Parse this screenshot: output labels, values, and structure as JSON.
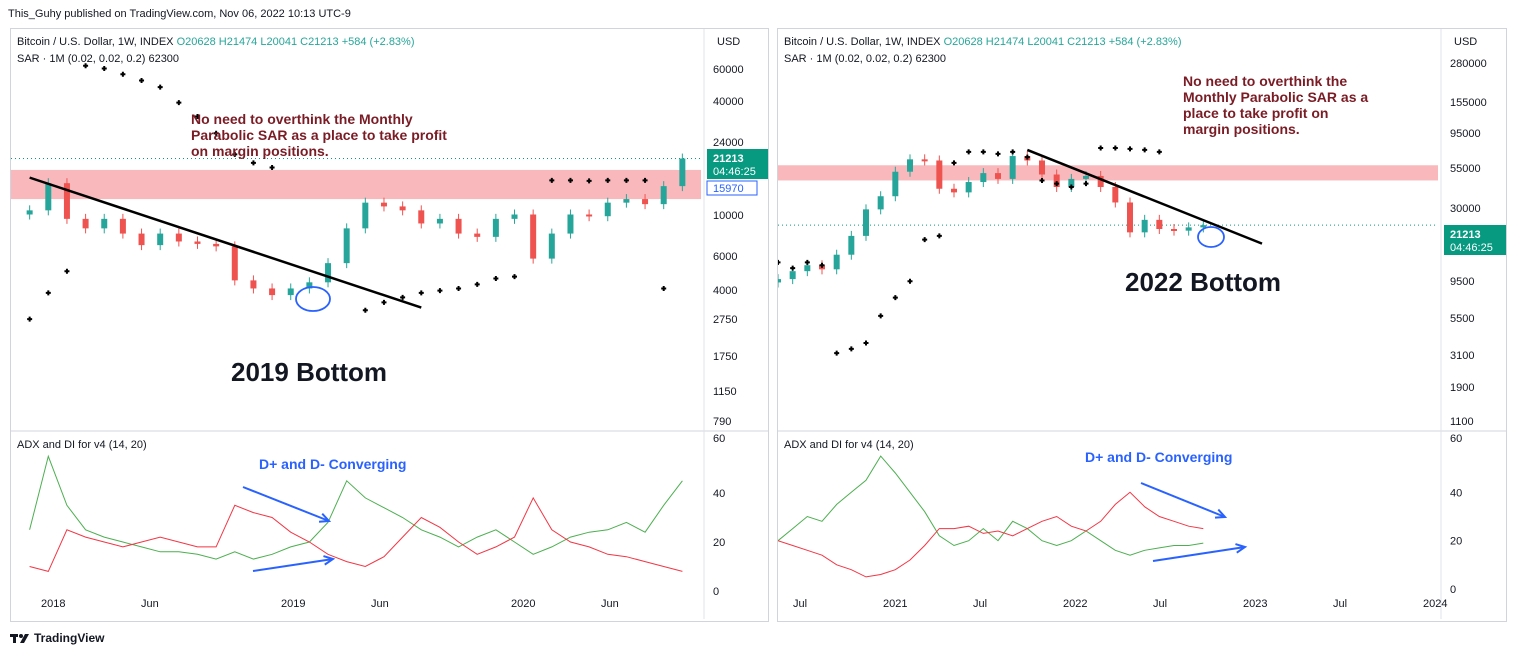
{
  "header": {
    "published": "This_Guhy published on TradingView.com, Nov 06, 2022 10:13 UTC-9"
  },
  "footer": {
    "brand": "TradingView"
  },
  "colors": {
    "up": "#26a69a",
    "down": "#ef5350",
    "resistance": "#f7a1a6",
    "annotation": "#7a1c25",
    "converging": "#2962ff",
    "adx_green": "#4caf50",
    "adx_red": "#f23645",
    "price_tag": "#089981"
  },
  "chart_data": [
    {
      "type": "candlestick",
      "name": "left",
      "legend": {
        "line1_symbol": "Bitcoin / U.S. Dollar, 1W, INDEX",
        "o": "O20628",
        "h": "H21474",
        "l": "L20041",
        "c": "C21213",
        "chg": "+584 (+2.83%)",
        "line2": "SAR · 1M (0.02, 0.02, 0.2)",
        "line2_val": "62300"
      },
      "currency": "USD",
      "y_scale": "log",
      "ylim": [
        700,
        90000
      ],
      "y_ticks": [
        "60000",
        "40000",
        "24000",
        "10000",
        "6000",
        "4000",
        "2750",
        "1750",
        "1150",
        "790"
      ],
      "x_ticks": [
        "2018",
        "Jun",
        "2019",
        "Jun",
        "2020",
        "Jun"
      ],
      "price_tag": {
        "price": "21213",
        "time": "04:46:25",
        "sar_price": "15970"
      },
      "price": [
        [
          "2017-12",
          10000
        ],
        [
          "2018-01",
          14000
        ],
        [
          "2018-02",
          9000
        ],
        [
          "2018-03",
          8000
        ],
        [
          "2018-04",
          9000
        ],
        [
          "2018-05",
          7500
        ],
        [
          "2018-06",
          6500
        ],
        [
          "2018-07",
          7500
        ],
        [
          "2018-08",
          6800
        ],
        [
          "2018-09",
          6600
        ],
        [
          "2018-10",
          6400
        ],
        [
          "2018-11",
          4200
        ],
        [
          "2018-12",
          3800
        ],
        [
          "2019-01",
          3500
        ],
        [
          "2019-02",
          3800
        ],
        [
          "2019-03",
          4100
        ],
        [
          "2019-04",
          5200
        ],
        [
          "2019-05",
          8000
        ],
        [
          "2019-06",
          11000
        ],
        [
          "2019-07",
          10500
        ],
        [
          "2019-08",
          10000
        ],
        [
          "2019-09",
          8500
        ],
        [
          "2019-10",
          9000
        ],
        [
          "2019-11",
          7500
        ],
        [
          "2019-12",
          7200
        ],
        [
          "2020-01",
          9000
        ],
        [
          "2020-02",
          9500
        ],
        [
          "2020-03",
          5500
        ],
        [
          "2020-04",
          7500
        ],
        [
          "2020-05",
          9500
        ],
        [
          "2020-06",
          9300
        ],
        [
          "2020-07",
          11000
        ],
        [
          "2020-08",
          11500
        ],
        [
          "2020-09",
          10800
        ],
        [
          "2020-10",
          13500
        ],
        [
          "2020-11",
          19000
        ]
      ],
      "sar": [
        [
          "2017-12",
          2600
        ],
        [
          "2018-01",
          3600
        ],
        [
          "2018-02",
          4700
        ],
        [
          "2018-03",
          60000
        ],
        [
          "2018-04",
          58000
        ],
        [
          "2018-05",
          54000
        ],
        [
          "2018-06",
          50000
        ],
        [
          "2018-07",
          46000
        ],
        [
          "2018-08",
          38000
        ],
        [
          "2018-09",
          32000
        ],
        [
          "2018-10",
          26000
        ],
        [
          "2018-11",
          20000
        ],
        [
          "2018-12",
          18000
        ],
        [
          "2019-01",
          17000
        ],
        [
          "2019-06",
          2900
        ],
        [
          "2019-07",
          3200
        ],
        [
          "2019-08",
          3400
        ],
        [
          "2019-09",
          3600
        ],
        [
          "2019-10",
          3700
        ],
        [
          "2019-11",
          3800
        ],
        [
          "2019-12",
          4000
        ],
        [
          "2020-01",
          4300
        ],
        [
          "2020-02",
          4400
        ],
        [
          "2020-04",
          14500
        ],
        [
          "2020-05",
          14500
        ],
        [
          "2020-06",
          14400
        ],
        [
          "2020-07",
          14500
        ],
        [
          "2020-08",
          14500
        ],
        [
          "2020-09",
          14500
        ],
        [
          "2020-10",
          3800
        ]
      ],
      "trendline": [
        [
          "2017-12",
          15000
        ],
        [
          "2019-09",
          3000
        ]
      ],
      "resistance_band": [
        11500,
        16500
      ],
      "annotation": [
        "No need to overthink the Monthly",
        "Parabolic SAR as a place to take profit",
        "on margin positions."
      ],
      "bottom_label": "2019 Bottom",
      "indicator": {
        "title": "ADX and DI for v4 (14, 20)",
        "ylim": [
          0,
          60
        ],
        "y_ticks": [
          "60",
          "40",
          "20",
          "0"
        ],
        "converging_label": "D+ and D- Converging",
        "di_plus": [
          [
            "2017-12",
            25
          ],
          [
            "2018-01",
            55
          ],
          [
            "2018-02",
            35
          ],
          [
            "2018-03",
            25
          ],
          [
            "2018-04",
            22
          ],
          [
            "2018-05",
            20
          ],
          [
            "2018-06",
            18
          ],
          [
            "2018-07",
            16
          ],
          [
            "2018-08",
            16
          ],
          [
            "2018-09",
            15
          ],
          [
            "2018-10",
            13
          ],
          [
            "2018-11",
            16
          ],
          [
            "2018-12",
            13
          ],
          [
            "2019-01",
            15
          ],
          [
            "2019-02",
            18
          ],
          [
            "2019-03",
            20
          ],
          [
            "2019-04",
            28
          ],
          [
            "2019-05",
            45
          ],
          [
            "2019-06",
            38
          ],
          [
            "2019-07",
            34
          ],
          [
            "2019-08",
            30
          ],
          [
            "2019-09",
            25
          ],
          [
            "2019-10",
            22
          ],
          [
            "2019-11",
            18
          ],
          [
            "2019-12",
            22
          ],
          [
            "2020-01",
            25
          ],
          [
            "2020-02",
            20
          ],
          [
            "2020-03",
            15
          ],
          [
            "2020-04",
            18
          ],
          [
            "2020-05",
            22
          ],
          [
            "2020-06",
            24
          ],
          [
            "2020-07",
            25
          ],
          [
            "2020-08",
            28
          ],
          [
            "2020-09",
            24
          ],
          [
            "2020-10",
            35
          ],
          [
            "2020-11",
            45
          ]
        ],
        "di_minus": [
          [
            "2017-12",
            10
          ],
          [
            "2018-01",
            8
          ],
          [
            "2018-02",
            25
          ],
          [
            "2018-03",
            22
          ],
          [
            "2018-04",
            20
          ],
          [
            "2018-05",
            18
          ],
          [
            "2018-06",
            20
          ],
          [
            "2018-07",
            22
          ],
          [
            "2018-08",
            20
          ],
          [
            "2018-09",
            18
          ],
          [
            "2018-10",
            18
          ],
          [
            "2018-11",
            35
          ],
          [
            "2018-12",
            32
          ],
          [
            "2019-01",
            30
          ],
          [
            "2019-02",
            24
          ],
          [
            "2019-03",
            20
          ],
          [
            "2019-04",
            15
          ],
          [
            "2019-05",
            12
          ],
          [
            "2019-06",
            10
          ],
          [
            "2019-07",
            14
          ],
          [
            "2019-08",
            22
          ],
          [
            "2019-09",
            30
          ],
          [
            "2019-10",
            26
          ],
          [
            "2019-11",
            20
          ],
          [
            "2019-12",
            15
          ],
          [
            "2020-01",
            18
          ],
          [
            "2020-02",
            22
          ],
          [
            "2020-03",
            38
          ],
          [
            "2020-04",
            25
          ],
          [
            "2020-05",
            20
          ],
          [
            "2020-06",
            18
          ],
          [
            "2020-07",
            15
          ],
          [
            "2020-08",
            14
          ],
          [
            "2020-09",
            12
          ],
          [
            "2020-10",
            10
          ],
          [
            "2020-11",
            8
          ]
        ]
      }
    },
    {
      "type": "candlestick",
      "name": "right",
      "legend": {
        "line1_symbol": "Bitcoin / U.S. Dollar, 1W, INDEX",
        "o": "O20628",
        "h": "H21474",
        "l": "L20041",
        "c": "C21213",
        "chg": "+584 (+2.83%)",
        "line2": "SAR · 1M (0.02, 0.02, 0.2)",
        "line2_val": "62300"
      },
      "currency": "USD",
      "y_scale": "log",
      "ylim": [
        1000,
        400000
      ],
      "y_ticks": [
        "280000",
        "155000",
        "95000",
        "55000",
        "30000",
        "9500",
        "5500",
        "3100",
        "1900",
        "1100"
      ],
      "x_ticks": [
        "Jul",
        "2021",
        "Jul",
        "2022",
        "Jul",
        "2023",
        "Jul",
        "2024"
      ],
      "price_tag": {
        "price": "21213",
        "time": "04:46:25"
      },
      "price": [
        [
          "2020-06",
          9300
        ],
        [
          "2020-07",
          10500
        ],
        [
          "2020-08",
          11500
        ],
        [
          "2020-09",
          10800
        ],
        [
          "2020-10",
          13500
        ],
        [
          "2020-11",
          18000
        ],
        [
          "2020-12",
          27000
        ],
        [
          "2021-01",
          33000
        ],
        [
          "2021-02",
          48000
        ],
        [
          "2021-03",
          58000
        ],
        [
          "2021-04",
          57000
        ],
        [
          "2021-05",
          37000
        ],
        [
          "2021-06",
          35000
        ],
        [
          "2021-07",
          41000
        ],
        [
          "2021-08",
          47000
        ],
        [
          "2021-09",
          43000
        ],
        [
          "2021-10",
          61000
        ],
        [
          "2021-11",
          57000
        ],
        [
          "2021-12",
          46000
        ],
        [
          "2022-01",
          38000
        ],
        [
          "2022-02",
          43000
        ],
        [
          "2022-03",
          45000
        ],
        [
          "2022-04",
          38000
        ],
        [
          "2022-05",
          30000
        ],
        [
          "2022-06",
          19000
        ],
        [
          "2022-07",
          23000
        ],
        [
          "2022-08",
          20000
        ],
        [
          "2022-09",
          19500
        ],
        [
          "2022-10",
          20500
        ],
        [
          "2022-11",
          21213
        ]
      ],
      "sar": [
        [
          "2020-06",
          12000
        ],
        [
          "2020-07",
          11000
        ],
        [
          "2020-08",
          12000
        ],
        [
          "2020-09",
          11500
        ],
        [
          "2020-10",
          3000
        ],
        [
          "2020-11",
          3200
        ],
        [
          "2020-12",
          3500
        ],
        [
          "2021-01",
          5300
        ],
        [
          "2021-02",
          7000
        ],
        [
          "2021-03",
          9000
        ],
        [
          "2021-04",
          17000
        ],
        [
          "2021-05",
          18000
        ],
        [
          "2021-06",
          55000
        ],
        [
          "2021-07",
          65000
        ],
        [
          "2021-08",
          65000
        ],
        [
          "2021-09",
          63000
        ],
        [
          "2021-10",
          65000
        ],
        [
          "2021-11",
          60000
        ],
        [
          "2021-12",
          42000
        ],
        [
          "2022-01",
          40000
        ],
        [
          "2022-02",
          38000
        ],
        [
          "2022-03",
          40000
        ],
        [
          "2022-04",
          69000
        ],
        [
          "2022-05",
          69000
        ],
        [
          "2022-06",
          68000
        ],
        [
          "2022-07",
          67000
        ],
        [
          "2022-08",
          65000
        ]
      ],
      "trendline": [
        [
          "2021-11",
          67000
        ],
        [
          "2023-03",
          16000
        ]
      ],
      "resistance_band": [
        42000,
        53000
      ],
      "annotation": [
        "No need to overthink the",
        "Monthly Parabolic SAR as a",
        "place to take profit on",
        "margin positions."
      ],
      "bottom_label": "2022 Bottom",
      "indicator": {
        "title": "ADX and DI for v4 (14, 20)",
        "ylim": [
          0,
          60
        ],
        "y_ticks": [
          "60",
          "40",
          "20",
          "0"
        ],
        "converging_label": "D+ and D- Converging",
        "di_plus": [
          [
            "2020-06",
            20
          ],
          [
            "2020-07",
            25
          ],
          [
            "2020-08",
            30
          ],
          [
            "2020-09",
            28
          ],
          [
            "2020-10",
            35
          ],
          [
            "2020-11",
            40
          ],
          [
            "2020-12",
            45
          ],
          [
            "2021-01",
            55
          ],
          [
            "2021-02",
            48
          ],
          [
            "2021-03",
            40
          ],
          [
            "2021-04",
            32
          ],
          [
            "2021-05",
            22
          ],
          [
            "2021-06",
            18
          ],
          [
            "2021-07",
            20
          ],
          [
            "2021-08",
            25
          ],
          [
            "2021-09",
            20
          ],
          [
            "2021-10",
            28
          ],
          [
            "2021-11",
            25
          ],
          [
            "2021-12",
            20
          ],
          [
            "2022-01",
            18
          ],
          [
            "2022-02",
            20
          ],
          [
            "2022-03",
            24
          ],
          [
            "2022-04",
            20
          ],
          [
            "2022-05",
            16
          ],
          [
            "2022-06",
            14
          ],
          [
            "2022-07",
            16
          ],
          [
            "2022-08",
            17
          ],
          [
            "2022-09",
            18
          ],
          [
            "2022-10",
            18
          ],
          [
            "2022-11",
            19
          ]
        ],
        "di_minus": [
          [
            "2020-06",
            20
          ],
          [
            "2020-07",
            18
          ],
          [
            "2020-08",
            16
          ],
          [
            "2020-09",
            14
          ],
          [
            "2020-10",
            10
          ],
          [
            "2020-11",
            8
          ],
          [
            "2020-12",
            5
          ],
          [
            "2021-01",
            6
          ],
          [
            "2021-02",
            8
          ],
          [
            "2021-03",
            12
          ],
          [
            "2021-04",
            18
          ],
          [
            "2021-05",
            25
          ],
          [
            "2021-06",
            25
          ],
          [
            "2021-07",
            26
          ],
          [
            "2021-08",
            23
          ],
          [
            "2021-09",
            24
          ],
          [
            "2021-10",
            22
          ],
          [
            "2021-11",
            25
          ],
          [
            "2021-12",
            28
          ],
          [
            "2022-01",
            30
          ],
          [
            "2022-02",
            26
          ],
          [
            "2022-03",
            24
          ],
          [
            "2022-04",
            28
          ],
          [
            "2022-05",
            35
          ],
          [
            "2022-06",
            40
          ],
          [
            "2022-07",
            34
          ],
          [
            "2022-08",
            30
          ],
          [
            "2022-09",
            28
          ],
          [
            "2022-10",
            26
          ],
          [
            "2022-11",
            25
          ]
        ]
      }
    }
  ]
}
